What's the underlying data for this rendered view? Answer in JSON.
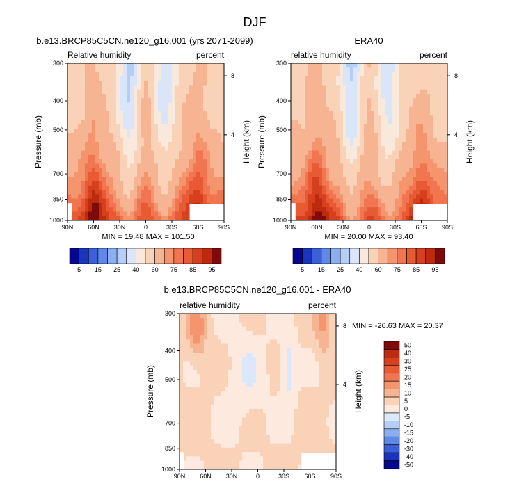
{
  "figure_title": "DJF",
  "chart_data": [
    {
      "type": "heatmap",
      "title": "b.e13.BRCP85C5CN.ne120_g16.001 (yrs 2071-2099)",
      "left_label": "Relative humidity",
      "right_label": "percent",
      "xlabel": "",
      "ylabel": "Pressure (mb)",
      "y2label": "Height (km)",
      "x_ticks": [
        "90N",
        "60N",
        "30N",
        "0",
        "30S",
        "60S",
        "90S"
      ],
      "y_ticks": [
        "300",
        "400",
        "500",
        "700",
        "850",
        "1000"
      ],
      "y2_ticks": [
        "8",
        "4"
      ],
      "ylim": [
        1000,
        300
      ],
      "xlim": [
        90,
        -90
      ],
      "min": "19.48",
      "max": "101.50",
      "min_label": "MIN =",
      "max_label": "MAX =",
      "colorbar_labels": [
        "5",
        "15",
        "25",
        "40",
        "60",
        "75",
        "85",
        "95"
      ],
      "colorbar_levels": [
        5,
        10,
        15,
        20,
        25,
        30,
        40,
        50,
        60,
        70,
        75,
        80,
        85,
        90,
        95
      ]
    },
    {
      "type": "heatmap",
      "title": "ERA40",
      "left_label": "relative humidity",
      "right_label": "percent",
      "xlabel": "",
      "ylabel": "Pressure (mb)",
      "y2label": "Height (km)",
      "x_ticks": [
        "90N",
        "60N",
        "30N",
        "0",
        "30S",
        "60S",
        "90S"
      ],
      "y_ticks": [
        "300",
        "400",
        "500",
        "700",
        "850",
        "1000"
      ],
      "y2_ticks": [
        "8",
        "4"
      ],
      "ylim": [
        1000,
        300
      ],
      "xlim": [
        90,
        -90
      ],
      "min": "20.00",
      "max": "93.40",
      "min_label": "MIN =",
      "max_label": "MAX =",
      "colorbar_labels": [
        "5",
        "15",
        "25",
        "40",
        "60",
        "75",
        "85",
        "95"
      ],
      "colorbar_levels": [
        5,
        10,
        15,
        20,
        25,
        30,
        40,
        50,
        60,
        70,
        75,
        80,
        85,
        90,
        95
      ]
    },
    {
      "type": "heatmap",
      "title": "b.e13.BRCP85C5CN.ne120_g16.001 - ERA40",
      "left_label": "relative humidity",
      "right_label": "percent",
      "xlabel": "",
      "ylabel": "Pressure (mb)",
      "y2label": "Height (km)",
      "x_ticks": [
        "90N",
        "60N",
        "30N",
        "0",
        "30S",
        "60S",
        "90S"
      ],
      "y_ticks": [
        "300",
        "400",
        "500",
        "700",
        "850",
        "1000"
      ],
      "y2_ticks": [
        "8",
        "4"
      ],
      "ylim": [
        1000,
        300
      ],
      "xlim": [
        90,
        -90
      ],
      "min": "-26.63",
      "max": "20.37",
      "min_label": "MIN =",
      "max_label": "MAX =",
      "colorbar_labels": [
        "50",
        "40",
        "30",
        "25",
        "20",
        "15",
        "10",
        "5",
        "0",
        "-5",
        "-10",
        "-15",
        "-20",
        "-30",
        "-40",
        "-50"
      ],
      "colorbar_levels": [
        50,
        40,
        30,
        25,
        20,
        15,
        10,
        5,
        0,
        -5,
        -10,
        -15,
        -20,
        -30,
        -40,
        -50
      ]
    }
  ],
  "colors": {
    "abs_scale": [
      "#06078f",
      "#1a35bd",
      "#3a5fd8",
      "#6088e6",
      "#8aaff0",
      "#b6cdf6",
      "#d9e6fa",
      "#f8e9dc",
      "#fad2b8",
      "#f7b492",
      "#f4956e",
      "#f07550",
      "#e85a34",
      "#d7401e",
      "#bd2b0e",
      "#7f0a0a"
    ],
    "diff_scale": [
      "#7f0a0a",
      "#bd2b0e",
      "#d7401e",
      "#e85a34",
      "#f07550",
      "#f4956e",
      "#f7b492",
      "#fad2b8",
      "#fde9dd",
      "#dbe7fa",
      "#b6cdf6",
      "#8aaff0",
      "#6088e6",
      "#3a5fd8",
      "#1a35bd",
      "#06078f"
    ]
  }
}
